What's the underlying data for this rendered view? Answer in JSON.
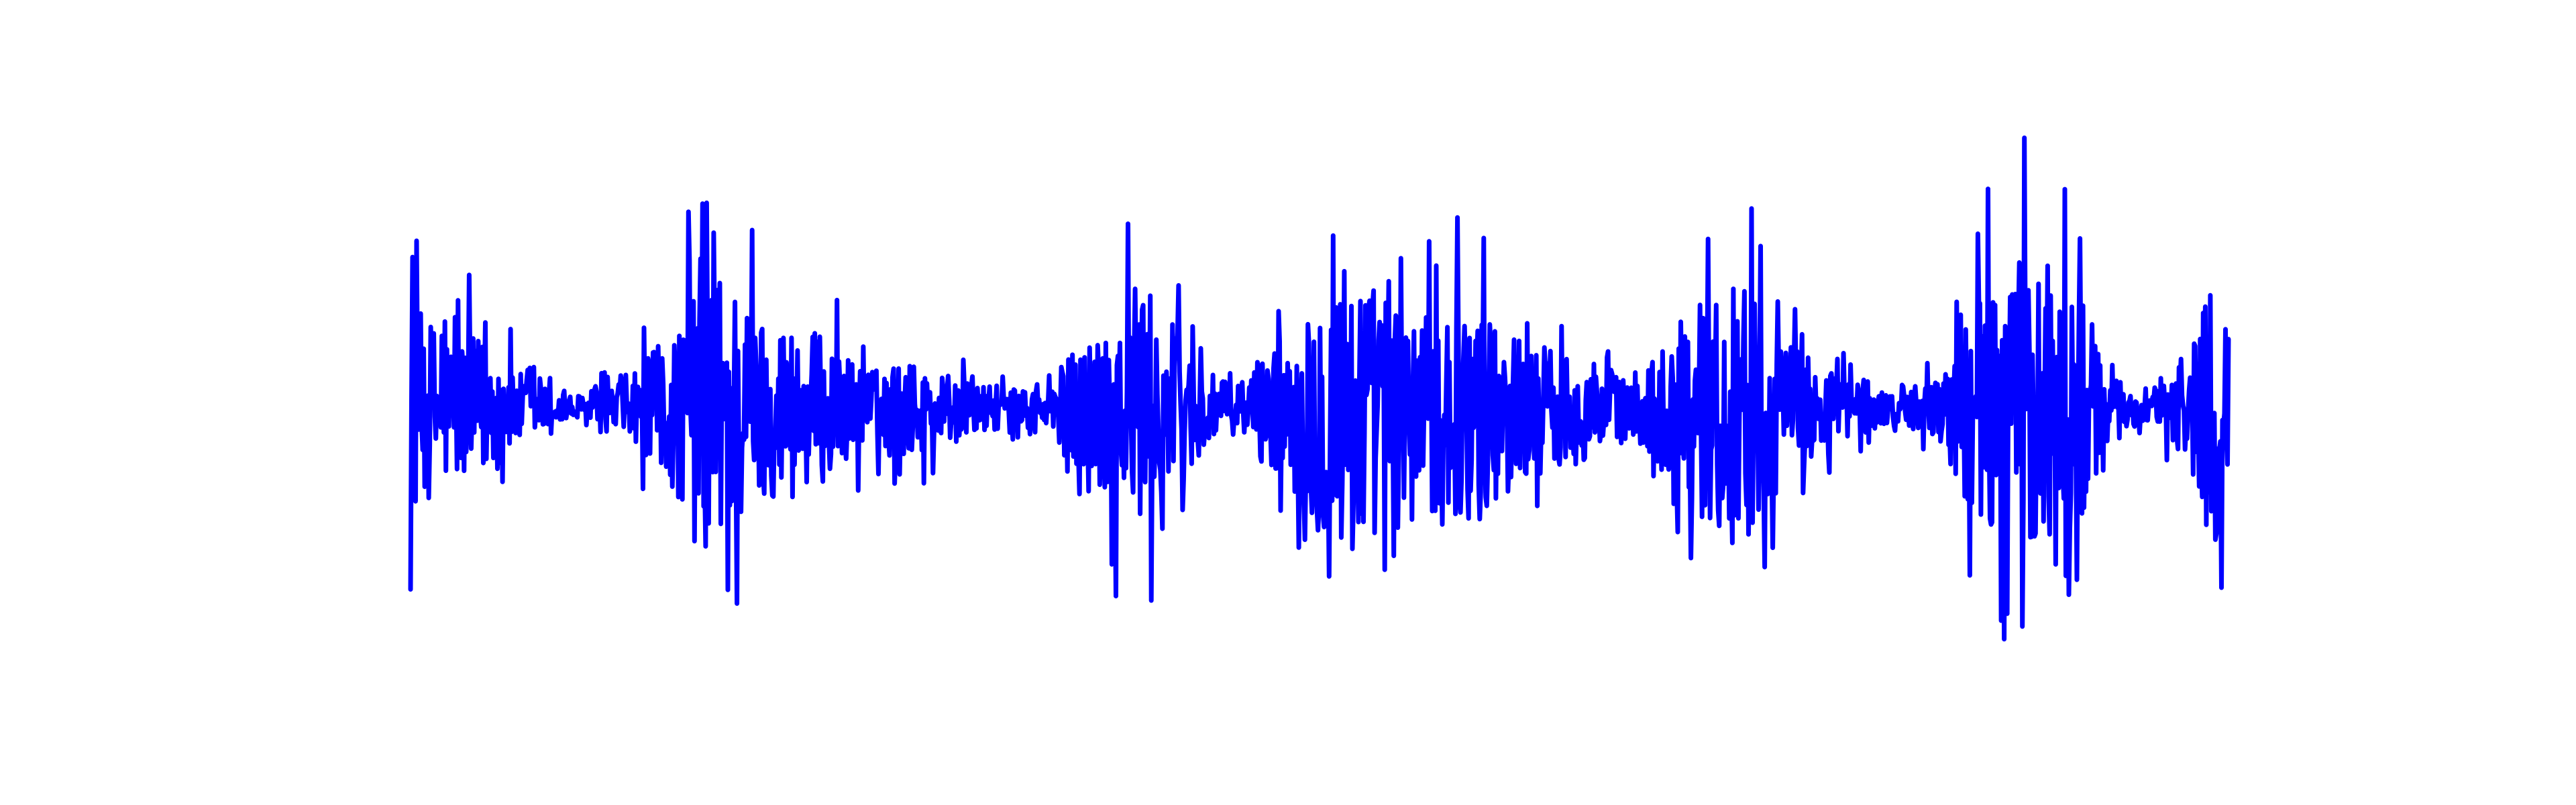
{
  "chart_data": {
    "type": "line",
    "title": "",
    "xlabel": "",
    "ylabel": "",
    "axes_visible": false,
    "grid": false,
    "legend": "none",
    "color": "#0000ff",
    "x_range": [
      0,
      1
    ],
    "y_range": [
      -1,
      1
    ],
    "sample_count": 1800,
    "envelope": {
      "x": [
        0.0,
        0.02,
        0.04,
        0.06,
        0.08,
        0.09,
        0.11,
        0.13,
        0.15,
        0.16,
        0.17,
        0.18,
        0.19,
        0.2,
        0.21,
        0.23,
        0.24,
        0.26,
        0.27,
        0.29,
        0.31,
        0.33,
        0.35,
        0.36,
        0.38,
        0.4,
        0.42,
        0.43,
        0.44,
        0.45,
        0.46,
        0.47,
        0.49,
        0.51,
        0.54,
        0.56,
        0.57,
        0.58,
        0.59,
        0.6,
        0.62,
        0.65,
        0.67,
        0.69,
        0.71,
        0.73,
        0.75,
        0.78,
        0.8,
        0.81,
        0.82,
        0.83,
        0.84,
        0.85,
        0.86,
        0.88,
        0.9,
        0.92,
        0.94,
        0.95,
        0.96,
        0.97,
        0.98,
        0.99,
        1.0
      ],
      "amplitude": [
        0.62,
        0.48,
        0.42,
        0.22,
        0.1,
        0.08,
        0.14,
        0.3,
        0.58,
        0.95,
        0.85,
        0.78,
        0.62,
        0.52,
        0.55,
        0.42,
        0.32,
        0.22,
        0.3,
        0.22,
        0.15,
        0.12,
        0.12,
        0.3,
        0.52,
        0.78,
        0.52,
        0.35,
        0.22,
        0.15,
        0.18,
        0.35,
        0.55,
        0.98,
        0.65,
        0.55,
        0.78,
        0.58,
        0.6,
        0.52,
        0.4,
        0.3,
        0.18,
        0.4,
        0.65,
        0.92,
        0.45,
        0.25,
        0.15,
        0.1,
        0.1,
        0.15,
        0.2,
        0.4,
        0.65,
        0.88,
        0.95,
        0.62,
        0.18,
        0.1,
        0.08,
        0.25,
        0.55,
        0.9,
        0.45
      ]
    }
  }
}
